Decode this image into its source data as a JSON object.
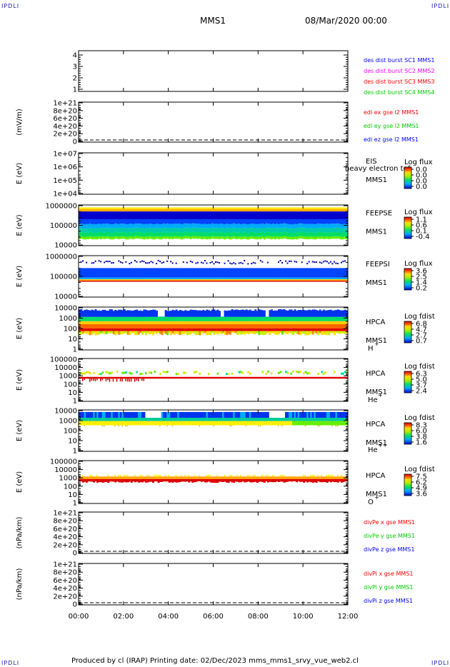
{
  "header": {
    "corner_label": "IPDLI",
    "mission": "MMS1",
    "date": "08/Mar/2020 00:00"
  },
  "footer": {
    "text": "Produced by cl (IRAP)   Printing date: 02/Dec/2023   mms_mms1_srvy_vue_web2.cl"
  },
  "chart_data": [
    {
      "type": "line",
      "id": "des_dist_burst",
      "ylabel": "",
      "ylim": [
        0.6,
        4.4
      ],
      "yticks": [
        "4",
        "3",
        "2",
        "1"
      ],
      "legend": [
        {
          "name": "des dist burst SC1 MMS1",
          "color": "#0000ff"
        },
        {
          "name": "des dist burst SC2 MMS2",
          "color": "#ff00ff"
        },
        {
          "name": "des dist burst SC3 MMS3",
          "color": "#ff0000"
        },
        {
          "name": "des dist burst SC4 MMS4",
          "color": "#00cc00"
        }
      ]
    },
    {
      "type": "line",
      "id": "edi_e",
      "ylabel": "(mV/m)",
      "ylim": [
        0,
        1e+21
      ],
      "yticks": [
        "1e+21",
        "8e+20",
        "6e+20",
        "4e+20",
        "2e+20",
        "0"
      ],
      "legend": [
        {
          "name": "edi ex gse l2 MMS1",
          "color": "#ff0000"
        },
        {
          "name": "edi ey gse l2 MMS1",
          "color": "#00cc00"
        },
        {
          "name": "edi ez gse l2 MMS1",
          "color": "#0000ff"
        }
      ]
    },
    {
      "type": "heatmap",
      "id": "eis",
      "ylabel": "E (eV)",
      "ylim": [
        10000.0,
        10000000.0
      ],
      "log": true,
      "yticks": [
        "1e+07",
        "1e+06",
        "1e+05",
        "1e+04"
      ],
      "side_labels": [
        "EIS",
        "MMS1"
      ],
      "overlap_label": "heavy electron tof",
      "colorbar": {
        "title": "Log flux",
        "ticks": [
          "0.0",
          "0.0",
          "0.0",
          "0.0"
        ]
      }
    },
    {
      "type": "heatmap",
      "id": "feepse",
      "ylabel": "E (eV)",
      "ylim": [
        10000.0,
        1000000.0
      ],
      "log": true,
      "yticks": [
        "1000000",
        "100000",
        "10000"
      ],
      "side_labels": [
        "FEEPSE",
        "MMS1"
      ],
      "colorbar": {
        "title": "Log flux",
        "ticks": [
          "1.1",
          "0.6",
          "0.1",
          "-0.4"
        ]
      }
    },
    {
      "type": "heatmap",
      "id": "feepsi",
      "ylabel": "E (eV)",
      "ylim": [
        10000.0,
        1000000.0
      ],
      "log": true,
      "yticks": [
        "1000000",
        "100000",
        "10000"
      ],
      "side_labels": [
        "FEEPSI",
        "MMS1"
      ],
      "colorbar": {
        "title": "Log flux",
        "ticks": [
          "3.6",
          "2.5",
          "1.4",
          "0.2"
        ]
      }
    },
    {
      "type": "heatmap",
      "id": "hpca_h",
      "ylabel": "E (eV)",
      "ylim": [
        1,
        10000.0
      ],
      "log": true,
      "yticks": [
        "10000",
        "1000",
        "100",
        "10",
        "1"
      ],
      "side_labels": [
        "HPCA",
        "MMS1"
      ],
      "species": "H",
      "charge": "+",
      "colorbar": {
        "title": "Log fdist",
        "ticks": [
          "6.8",
          "4.7",
          "2.7",
          "0.7"
        ]
      }
    },
    {
      "type": "heatmap",
      "id": "hpca_he",
      "ylabel": "E (eV)",
      "ylim": [
        1,
        100000.0
      ],
      "log": true,
      "yticks": [
        "100000",
        "10000",
        "1000",
        "100",
        "10",
        "1"
      ],
      "side_labels": [
        "HPCA",
        "MMS1"
      ],
      "species": "He",
      "charge": "+",
      "colorbar": {
        "title": "Log fdist",
        "ticks": [
          "6.3",
          "5.0",
          "3.7",
          "2.4"
        ]
      }
    },
    {
      "type": "heatmap",
      "id": "hpca_hepp",
      "ylabel": "E (eV)",
      "ylim": [
        1,
        10000.0
      ],
      "log": true,
      "yticks": [
        "10000",
        "1000",
        "100",
        "10",
        "1"
      ],
      "side_labels": [
        "HPCA",
        "MMS1"
      ],
      "species": "He",
      "charge": "++",
      "colorbar": {
        "title": "Log fdist",
        "ticks": [
          "8.3",
          "6.0",
          "3.8",
          "1.6"
        ]
      }
    },
    {
      "type": "heatmap",
      "id": "hpca_o",
      "ylabel": "E (eV)",
      "ylim": [
        1,
        100000.0
      ],
      "log": true,
      "yticks": [
        "100000",
        "10000",
        "1000",
        "100",
        "10",
        "1"
      ],
      "side_labels": [
        "HPCA",
        "MMS1"
      ],
      "species": "O",
      "charge": "+",
      "colorbar": {
        "title": "Log fdist",
        "ticks": [
          "7.5",
          "6.2",
          "4.9",
          "3.6"
        ]
      }
    },
    {
      "type": "line",
      "id": "divpe",
      "ylabel": "(nPa/km)",
      "ylim": [
        0,
        1e+21
      ],
      "yticks": [
        "1e+21",
        "8e+20",
        "6e+20",
        "4e+20",
        "2e+20",
        "0"
      ],
      "legend": [
        {
          "name": "divPe x gse MMS1",
          "color": "#ff0000"
        },
        {
          "name": "divPe y gse MMS1",
          "color": "#00cc00"
        },
        {
          "name": "divPe z gse MMS1",
          "color": "#0000ff"
        }
      ]
    },
    {
      "type": "line",
      "id": "divpi",
      "ylabel": "(nPa/km)",
      "ylim": [
        0,
        1e+21
      ],
      "yticks": [
        "1e+21",
        "8e+20",
        "6e+20",
        "4e+20",
        "2e+20",
        "0"
      ],
      "legend": [
        {
          "name": "divPi x gse MMS1",
          "color": "#ff0000"
        },
        {
          "name": "divPi y gse MMS1",
          "color": "#00cc00"
        },
        {
          "name": "divPi z gse MMS1",
          "color": "#0000ff"
        }
      ],
      "xticks": [
        "00:00",
        "02:00",
        "04:00",
        "06:00",
        "08:00",
        "10:00",
        "12:00"
      ]
    }
  ]
}
